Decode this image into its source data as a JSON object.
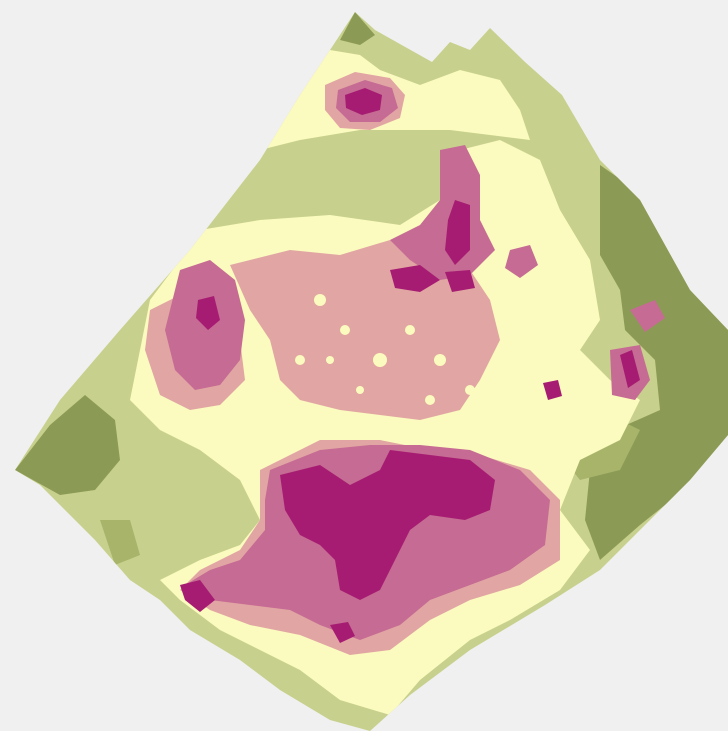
{
  "map": {
    "type": "classified raster (unlabeled)",
    "background_color": "#f0f0f0",
    "palette": {
      "dark_olive": "#8b9b55",
      "olive": "#a7b46a",
      "light_olive": "#c8d08d",
      "cream": "#fbfbbf",
      "pale_rose": "#e1a6a3",
      "rose": "#c66b93",
      "magenta": "#a61c72"
    },
    "class_count": 7,
    "legend_visible": false,
    "labels_visible": false
  }
}
